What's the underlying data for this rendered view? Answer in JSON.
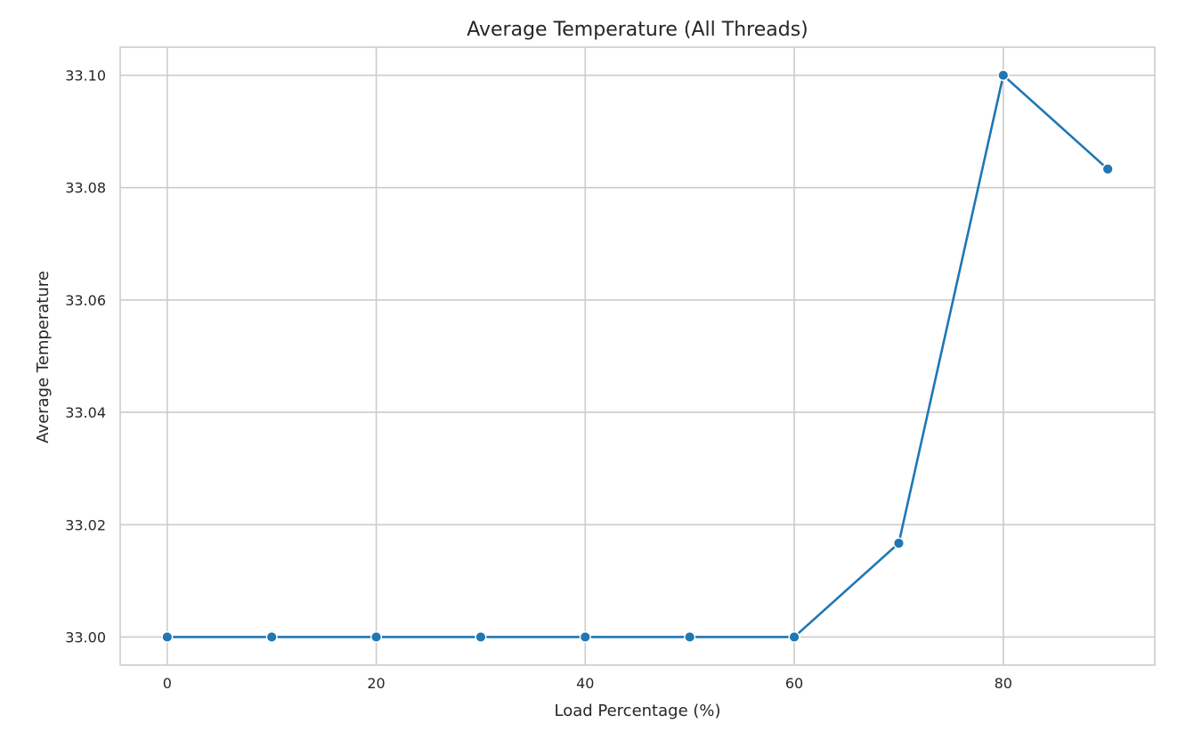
{
  "chart_data": {
    "type": "line",
    "title": "Average Temperature (All Threads)",
    "xlabel": "Load Percentage (%)",
    "ylabel": "Average Temperature",
    "x": [
      0,
      10,
      20,
      30,
      40,
      50,
      60,
      70,
      80,
      90
    ],
    "series": [
      {
        "values": [
          33.0,
          33.0,
          33.0,
          33.0,
          33.0,
          33.0,
          33.0,
          33.0167,
          33.1,
          33.0833
        ],
        "color": "#1f77b4",
        "marker": "circle"
      }
    ],
    "xlim": [
      -4.5,
      94.5
    ],
    "ylim": [
      32.995,
      33.105
    ],
    "xticks": [
      0,
      20,
      40,
      60,
      80
    ],
    "xtick_labels": [
      "0",
      "20",
      "40",
      "60",
      "80"
    ],
    "yticks": [
      33.0,
      33.02,
      33.04,
      33.06,
      33.08,
      33.1
    ],
    "ytick_labels": [
      "33.00",
      "33.02",
      "33.04",
      "33.06",
      "33.08",
      "33.10"
    ],
    "grid": true,
    "style": "whitegrid"
  }
}
